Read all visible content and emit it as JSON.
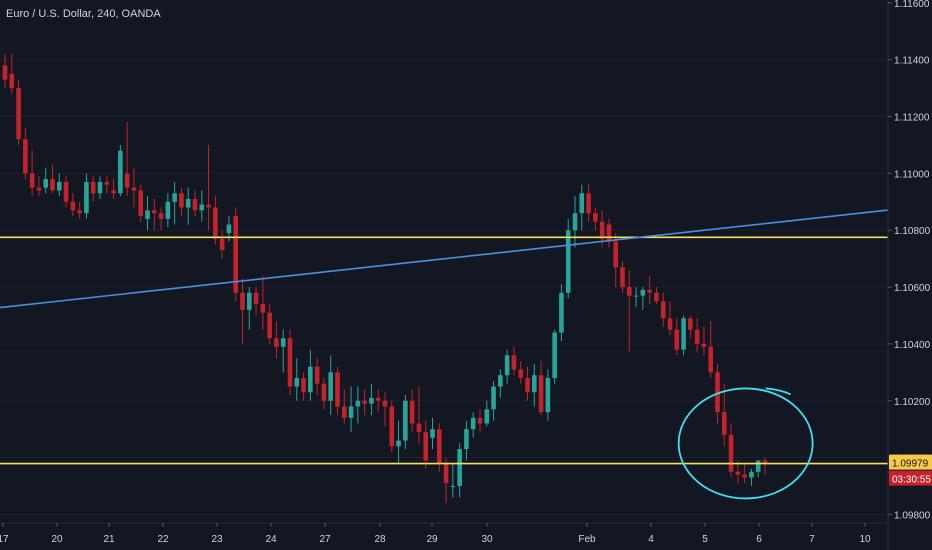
{
  "title": "Euro / U.S. Dollar, 240, OANDA",
  "chart_data": {
    "type": "candlestick",
    "symbol": "Euro / U.S. Dollar",
    "interval": "240",
    "source": "OANDA",
    "y_ticks": [
      "1.09800",
      "1.10000",
      "1.10200",
      "1.10400",
      "1.10600",
      "1.10800",
      "1.11000",
      "1.11200",
      "1.11400",
      "1.11600"
    ],
    "y_tick_values": [
      1.098,
      1.1,
      1.102,
      1.104,
      1.106,
      1.108,
      1.11,
      1.112,
      1.114,
      1.116
    ],
    "ylim": [
      1.0977,
      1.1161
    ],
    "x_ticks": [
      "17",
      "20",
      "21",
      "22",
      "23",
      "24",
      "27",
      "28",
      "29",
      "30",
      "Feb",
      "4",
      "5",
      "6",
      "7",
      "10"
    ],
    "current_price": "1.09979",
    "countdown": "03:30:55",
    "candles": [
      [
        1.1138,
        1.1142,
        1.113,
        1.1133
      ],
      [
        1.1135,
        1.1142,
        1.1128,
        1.113
      ],
      [
        1.113,
        1.1133,
        1.111,
        1.1112
      ],
      [
        1.1112,
        1.1116,
        1.1098,
        1.11
      ],
      [
        1.11,
        1.1108,
        1.1092,
        1.1095
      ],
      [
        1.1095,
        1.1099,
        1.1092,
        1.1094
      ],
      [
        1.1095,
        1.1102,
        1.1093,
        1.1098
      ],
      [
        1.1098,
        1.1103,
        1.1093,
        1.1094
      ],
      [
        1.1094,
        1.11,
        1.1092,
        1.1097
      ],
      [
        1.1097,
        1.1099,
        1.1088,
        1.109
      ],
      [
        1.109,
        1.1093,
        1.1085,
        1.1087
      ],
      [
        1.1087,
        1.109,
        1.1084,
        1.1086
      ],
      [
        1.1086,
        1.11,
        1.1084,
        1.1097
      ],
      [
        1.1097,
        1.1099,
        1.109,
        1.1093
      ],
      [
        1.1093,
        1.1099,
        1.1091,
        1.1097
      ],
      [
        1.1097,
        1.1099,
        1.1093,
        1.1096
      ],
      [
        1.1094,
        1.1098,
        1.1091,
        1.1093
      ],
      [
        1.1093,
        1.111,
        1.1092,
        1.1108
      ],
      [
        1.11,
        1.1118,
        1.1092,
        1.1095
      ],
      [
        1.1095,
        1.1102,
        1.1088,
        1.1094
      ],
      [
        1.1094,
        1.1096,
        1.1083,
        1.1085
      ],
      [
        1.1084,
        1.1092,
        1.108,
        1.1087
      ],
      [
        1.1087,
        1.1091,
        1.108,
        1.1086
      ],
      [
        1.1086,
        1.1088,
        1.108,
        1.1084
      ],
      [
        1.1084,
        1.1093,
        1.1081,
        1.109
      ],
      [
        1.109,
        1.1097,
        1.1082,
        1.1093
      ],
      [
        1.1093,
        1.1095,
        1.1085,
        1.1088
      ],
      [
        1.1088,
        1.1095,
        1.1082,
        1.1091
      ],
      [
        1.1091,
        1.1094,
        1.1085,
        1.1087
      ],
      [
        1.1087,
        1.1094,
        1.1083,
        1.1089
      ],
      [
        1.1089,
        1.111,
        1.108,
        1.1088
      ],
      [
        1.1088,
        1.1092,
        1.1075,
        1.1077
      ],
      [
        1.1077,
        1.108,
        1.107,
        1.1073
      ],
      [
        1.1079,
        1.1085,
        1.1076,
        1.1082
      ],
      [
        1.1085,
        1.1088,
        1.1055,
        1.1058
      ],
      [
        1.1058,
        1.1063,
        1.104,
        1.1052
      ],
      [
        1.1052,
        1.106,
        1.1045,
        1.1058
      ],
      [
        1.1058,
        1.106,
        1.105,
        1.1054
      ],
      [
        1.1054,
        1.1064,
        1.1045,
        1.1051
      ],
      [
        1.1051,
        1.1054,
        1.104,
        1.1042
      ],
      [
        1.1042,
        1.1048,
        1.1035,
        1.1039
      ],
      [
        1.1039,
        1.1045,
        1.103,
        1.1042
      ],
      [
        1.1042,
        1.1045,
        1.1022,
        1.1025
      ],
      [
        1.1025,
        1.1035,
        1.102,
        1.1028
      ],
      [
        1.1028,
        1.103,
        1.102,
        1.1023
      ],
      [
        1.1023,
        1.1038,
        1.102,
        1.1032
      ],
      [
        1.1032,
        1.1035,
        1.1022,
        1.1026
      ],
      [
        1.1026,
        1.1028,
        1.1017,
        1.102
      ],
      [
        1.102,
        1.1036,
        1.1015,
        1.103
      ],
      [
        1.103,
        1.1032,
        1.1015,
        1.1018
      ],
      [
        1.1018,
        1.1024,
        1.1012,
        1.1014
      ],
      [
        1.1014,
        1.1025,
        1.1009,
        1.1018
      ],
      [
        1.1018,
        1.1025,
        1.1012,
        1.102
      ],
      [
        1.102,
        1.1024,
        1.1015,
        1.1019
      ],
      [
        1.1019,
        1.1026,
        1.1015,
        1.1021
      ],
      [
        1.1021,
        1.1024,
        1.1016,
        1.102
      ],
      [
        1.102,
        1.1023,
        1.1011,
        1.1018
      ],
      [
        1.1018,
        1.102,
        1.1002,
        1.1004
      ],
      [
        1.1004,
        1.1013,
        1.0998,
        1.1006
      ],
      [
        1.1006,
        1.1022,
        1.1003,
        1.102
      ],
      [
        1.102,
        1.1024,
        1.1009,
        1.1012
      ],
      [
        1.1012,
        1.1025,
        1.1005,
        1.1009
      ],
      [
        1.1009,
        1.1013,
        1.0996,
        1.0999
      ],
      [
        1.1007,
        1.1014,
        1.1003,
        1.101
      ],
      [
        1.101,
        1.1012,
        1.0995,
        1.0998
      ],
      [
        1.0998,
        1.1,
        1.0984,
        1.0991
      ],
      [
        1.099,
        1.0998,
        1.0986,
        1.099
      ],
      [
        1.099,
        1.1005,
        1.0986,
        1.1003
      ],
      [
        1.1003,
        1.1013,
        1.0999,
        1.101
      ],
      [
        1.101,
        1.1016,
        1.1007,
        1.1014
      ],
      [
        1.1014,
        1.1017,
        1.1009,
        1.1012
      ],
      [
        1.1012,
        1.102,
        1.1011,
        1.1017
      ],
      [
        1.1017,
        1.1027,
        1.1013,
        1.1025
      ],
      [
        1.1025,
        1.1031,
        1.1021,
        1.1029
      ],
      [
        1.1029,
        1.1038,
        1.1026,
        1.1036
      ],
      [
        1.1036,
        1.1039,
        1.1029,
        1.1031
      ],
      [
        1.1031,
        1.1034,
        1.1026,
        1.1028
      ],
      [
        1.1028,
        1.1032,
        1.102,
        1.1023
      ],
      [
        1.1023,
        1.1033,
        1.1018,
        1.1029
      ],
      [
        1.1029,
        1.1034,
        1.1015,
        1.1016
      ],
      [
        1.1016,
        1.1031,
        1.1013,
        1.1028
      ],
      [
        1.1028,
        1.1045,
        1.1026,
        1.1044
      ],
      [
        1.1044,
        1.1061,
        1.1041,
        1.1058
      ],
      [
        1.1058,
        1.1084,
        1.1056,
        1.108
      ],
      [
        1.108,
        1.1092,
        1.1074,
        1.1086
      ],
      [
        1.1086,
        1.1096,
        1.108,
        1.1093
      ],
      [
        1.1093,
        1.1096,
        1.1083,
        1.1086
      ],
      [
        1.1086,
        1.1088,
        1.108,
        1.1083
      ],
      [
        1.1083,
        1.1087,
        1.1074,
        1.1077
      ],
      [
        1.1082,
        1.1084,
        1.1074,
        1.1076
      ],
      [
        1.1076,
        1.1079,
        1.106,
        1.1067
      ],
      [
        1.1067,
        1.1069,
        1.1058,
        1.106
      ],
      [
        1.106,
        1.1066,
        1.1037,
        1.1057
      ],
      [
        1.1057,
        1.106,
        1.1053,
        1.1057
      ],
      [
        1.1057,
        1.106,
        1.1052,
        1.1059
      ],
      [
        1.1059,
        1.1064,
        1.1054,
        1.1058
      ],
      [
        1.1058,
        1.106,
        1.1054,
        1.1055
      ],
      [
        1.1055,
        1.1058,
        1.1046,
        1.1049
      ],
      [
        1.1049,
        1.1055,
        1.1043,
        1.1045
      ],
      [
        1.1045,
        1.1049,
        1.1036,
        1.1038
      ],
      [
        1.1038,
        1.105,
        1.1036,
        1.1049
      ],
      [
        1.1049,
        1.105,
        1.1042,
        1.1045
      ],
      [
        1.1045,
        1.1049,
        1.1037,
        1.104
      ],
      [
        1.104,
        1.1046,
        1.1036,
        1.1039
      ],
      [
        1.1039,
        1.1048,
        1.1028,
        1.103
      ],
      [
        1.103,
        1.1033,
        1.1012,
        1.1016
      ],
      [
        1.1016,
        1.1026,
        1.1004,
        1.1008
      ],
      [
        1.1008,
        1.1012,
        1.0993,
        1.0995
      ],
      [
        1.0995,
        1.0999,
        1.0991,
        1.0994
      ],
      [
        1.0994,
        1.0998,
        1.0991,
        1.0993
      ],
      [
        1.0993,
        1.0996,
        1.099,
        1.0995
      ],
      [
        1.0995,
        1.0999,
        1.0993,
        1.0999
      ],
      [
        1.0999,
        1.1,
        1.0994,
        1.0998
      ]
    ],
    "horizontal_lines": [
      {
        "value": 1.10775,
        "color": "#f6e05e"
      },
      {
        "value": 1.09979,
        "color": "#f6e05e"
      }
    ],
    "trendline": {
      "from": [
        1.10528,
        0
      ],
      "to": [
        1.10871,
        1
      ],
      "color": "#4a8fe0"
    },
    "annotation": {
      "type": "ellipse",
      "color": "#3ee0f5"
    },
    "colors": {
      "up": "#26a69a",
      "down": "#c5222b",
      "background": "#131722",
      "axis_text": "#d1d4dc",
      "price_label": "#f7c948",
      "countdown_label": "#c5222b"
    }
  }
}
